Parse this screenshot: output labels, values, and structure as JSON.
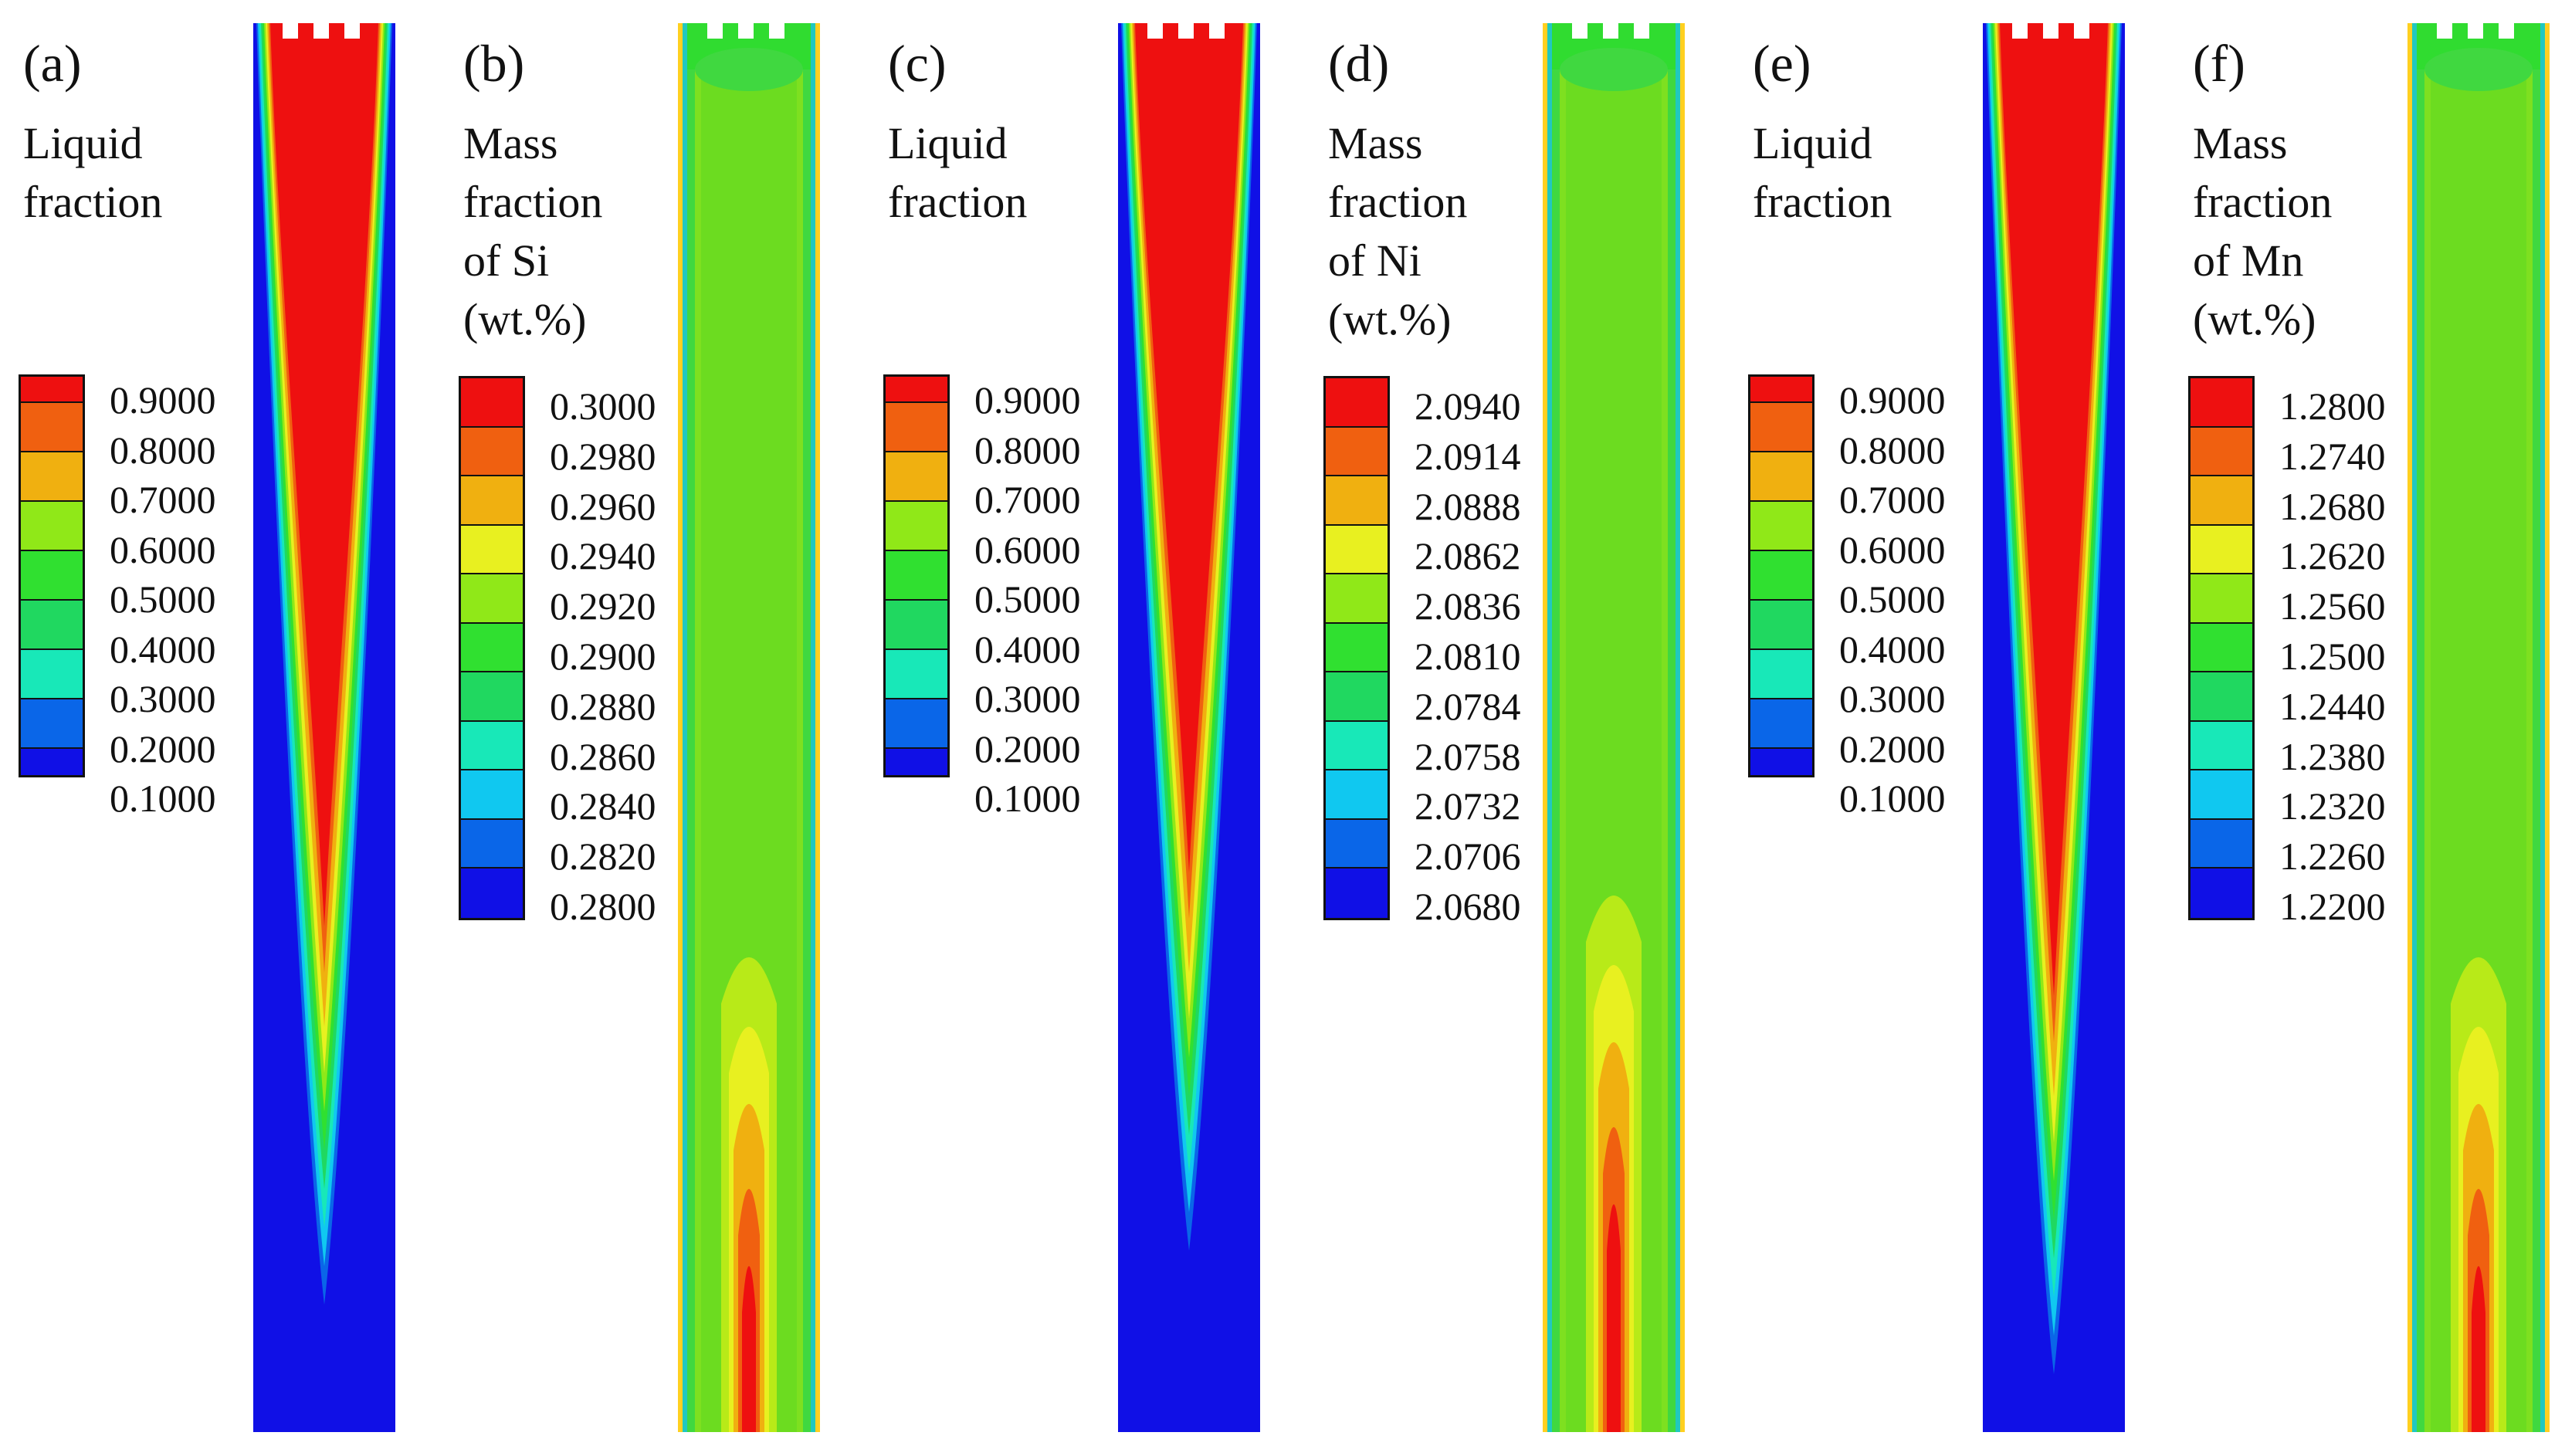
{
  "colormap": [
    "#1010e6",
    "#0a66e8",
    "#10c8f0",
    "#18e8b8",
    "#20d860",
    "#30e030",
    "#90e818",
    "#e8f020",
    "#f0b010",
    "#f06010",
    "#ee1010"
  ],
  "panels": [
    {
      "label": "(a)",
      "title": [
        "Liquid",
        "fraction"
      ],
      "ticks": [
        "0.9000",
        "0.8000",
        "0.7000",
        "0.6000",
        "0.5000",
        "0.4000",
        "0.3000",
        "0.2000",
        "0.1000"
      ],
      "field": "liquid-fraction"
    },
    {
      "label": "(b)",
      "title": [
        "Mass",
        "fraction",
        "of Si",
        "(wt.%)"
      ],
      "ticks": [
        "0.3000",
        "0.2980",
        "0.2960",
        "0.2940",
        "0.2920",
        "0.2900",
        "0.2880",
        "0.2860",
        "0.2840",
        "0.2820",
        "0.2800"
      ],
      "field": "mass-fraction"
    },
    {
      "label": "(c)",
      "title": [
        "Liquid",
        "fraction"
      ],
      "ticks": [
        "0.9000",
        "0.8000",
        "0.7000",
        "0.6000",
        "0.5000",
        "0.4000",
        "0.3000",
        "0.2000",
        "0.1000"
      ],
      "field": "liquid-fraction"
    },
    {
      "label": "(d)",
      "title": [
        "Mass",
        "fraction",
        "of Ni",
        "(wt.%)"
      ],
      "ticks": [
        "2.0940",
        "2.0914",
        "2.0888",
        "2.0862",
        "2.0836",
        "2.0810",
        "2.0784",
        "2.0758",
        "2.0732",
        "2.0706",
        "2.0680"
      ],
      "field": "mass-fraction"
    },
    {
      "label": "(e)",
      "title": [
        "Liquid",
        "fraction"
      ],
      "ticks": [
        "0.9000",
        "0.8000",
        "0.7000",
        "0.6000",
        "0.5000",
        "0.4000",
        "0.3000",
        "0.2000",
        "0.1000"
      ],
      "field": "liquid-fraction"
    },
    {
      "label": "(f)",
      "title": [
        "Mass",
        "fraction",
        "of Mn",
        "(wt.%)"
      ],
      "ticks": [
        "1.2800",
        "1.2740",
        "1.2680",
        "1.2620",
        "1.2560",
        "1.2500",
        "1.2440",
        "1.2380",
        "1.2320",
        "1.2260",
        "1.2200"
      ],
      "field": "mass-fraction"
    }
  ]
}
